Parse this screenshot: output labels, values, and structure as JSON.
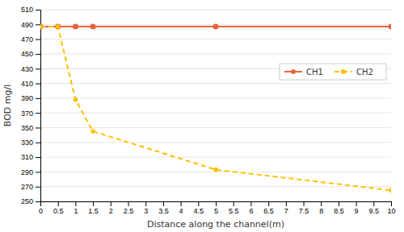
{
  "chart_data": {
    "type": "line",
    "x_label": "Distance along the channel(m)",
    "y_label": "BOD mg/l",
    "x": [
      0,
      0.5,
      1,
      1.5,
      5,
      10
    ],
    "series": [
      {
        "name": "CH1",
        "color": "#E8643C",
        "marker": "circle",
        "line_style": "solid",
        "values": [
          487,
          487,
          487,
          487,
          487,
          487
        ]
      },
      {
        "name": "CH2",
        "color": "#FFC000",
        "marker": "circle",
        "line_style": "dashed",
        "values": [
          487,
          487,
          388,
          345,
          293,
          265
        ]
      }
    ],
    "xlim": [
      0,
      10
    ],
    "ylim": [
      250,
      510
    ],
    "xticks": [
      0,
      0.5,
      1,
      1.5,
      2,
      2.5,
      3,
      3.5,
      4,
      4.5,
      5,
      5.5,
      6,
      6.5,
      7,
      7.5,
      8,
      8.5,
      9,
      9.5,
      10
    ],
    "yticks": [
      250,
      270,
      290,
      310,
      330,
      350,
      370,
      390,
      410,
      430,
      450,
      470,
      490,
      510
    ],
    "grid": "y",
    "legend": "upper right"
  }
}
